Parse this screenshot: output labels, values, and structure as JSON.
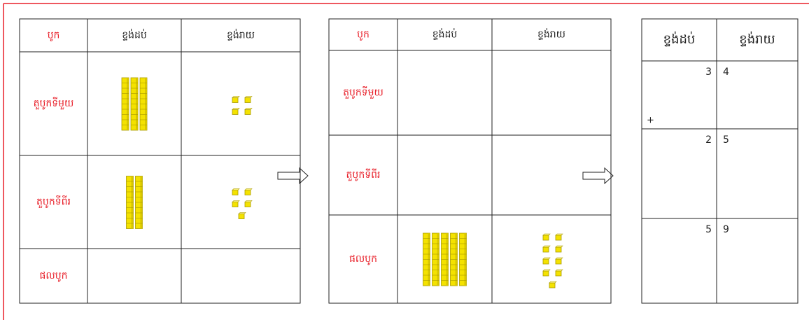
{
  "tables": [
    {
      "headers": [
        "បូក",
        "ខ្ទង់ដប់",
        "ខ្ទង់រាយ"
      ],
      "rows": [
        "តួបូកទីមួយ",
        "តួបូកទីពីរ",
        "ផលបូក"
      ]
    },
    {
      "headers": [
        "បូក",
        "ខ្ទង់ដប់",
        "ខ្ទង់រាយ"
      ],
      "rows": [
        "តួបូកទីមួយ",
        "តួបូកទីពីរ",
        "ផលបូក"
      ]
    }
  ],
  "result_table": {
    "headers": [
      "ខ្ទង់ដប់",
      "ខ្ទង់រាយ"
    ],
    "operator": "+",
    "rows": [
      [
        3,
        4
      ],
      [
        2,
        5
      ],
      [
        5,
        9
      ]
    ]
  }
}
